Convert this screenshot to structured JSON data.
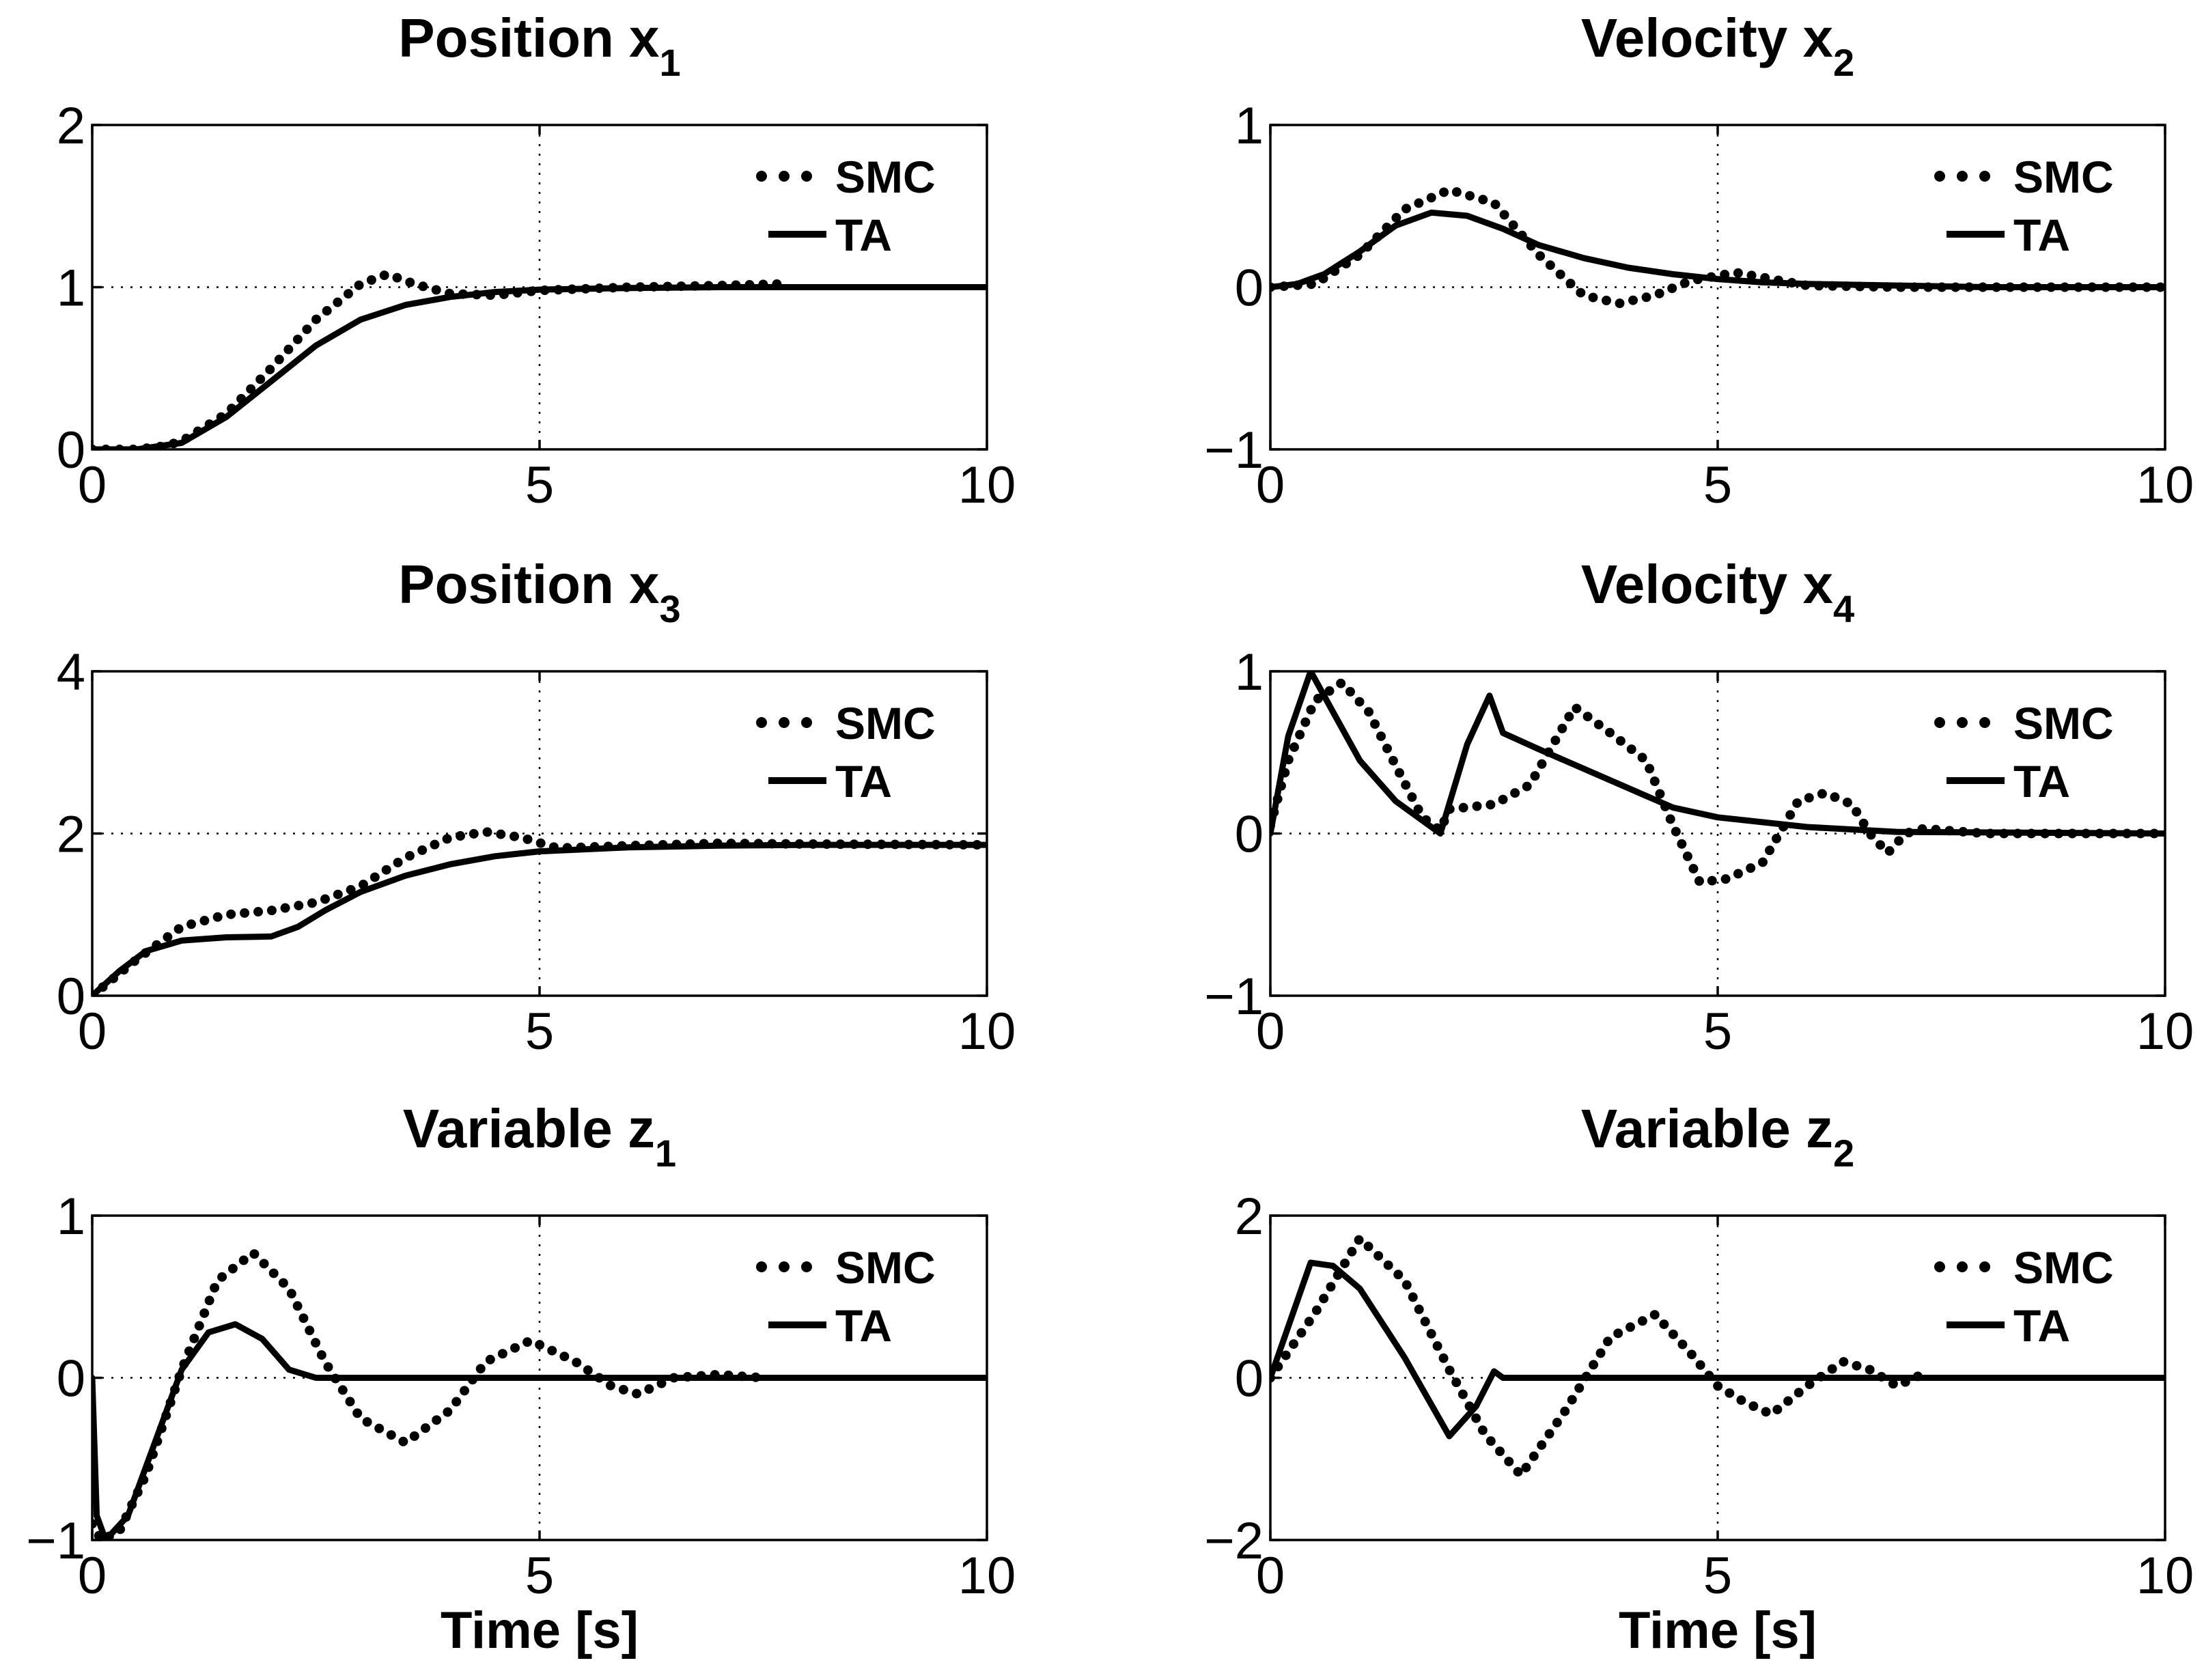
{
  "legend": {
    "smc": "SMC",
    "ta": "TA"
  },
  "colors": {
    "line": "#000000",
    "background": "#ffffff"
  },
  "chart_data": [
    {
      "type": "line",
      "title": "Position x",
      "subscript": "1",
      "xlabel": "",
      "xlim": [
        0,
        10
      ],
      "ylim": [
        0,
        2
      ],
      "xticks": [
        "0",
        "5",
        "10"
      ],
      "yticks": [
        "0",
        "1",
        "2"
      ],
      "grid_x": [
        5
      ],
      "grid_y": [
        1
      ],
      "legend_position": "top-right",
      "series": [
        {
          "name": "SMC",
          "style": "dotted",
          "x": [
            0,
            0.5,
            0.8,
            1,
            1.5,
            2,
            2.5,
            3,
            3.3,
            3.6,
            4,
            4.5,
            5,
            6,
            7,
            7.7
          ],
          "y": [
            0,
            0,
            0.02,
            0.05,
            0.22,
            0.5,
            0.8,
            1.02,
            1.08,
            1.02,
            0.96,
            0.95,
            0.98,
            1.0,
            1.01,
            1.02
          ]
        },
        {
          "name": "TA",
          "style": "solid",
          "x": [
            0,
            0.5,
            1,
            1.5,
            2,
            2.5,
            3,
            3.5,
            4,
            4.5,
            5,
            6,
            7,
            8,
            10
          ],
          "y": [
            0,
            0,
            0.04,
            0.2,
            0.42,
            0.64,
            0.8,
            0.89,
            0.94,
            0.97,
            0.985,
            0.995,
            1,
            1,
            1
          ]
        }
      ]
    },
    {
      "type": "line",
      "title": "Velocity x",
      "subscript": "2",
      "xlabel": "",
      "xlim": [
        0,
        10
      ],
      "ylim": [
        -1,
        1
      ],
      "xticks": [
        "0",
        "5",
        "10"
      ],
      "yticks": [
        "−1",
        "0",
        "1"
      ],
      "grid_x": [
        5
      ],
      "grid_y": [
        0
      ],
      "legend_position": "top-right",
      "series": [
        {
          "name": "SMC",
          "style": "dotted",
          "x": [
            0,
            0.5,
            1,
            1.5,
            2,
            2.5,
            3,
            3.5,
            3.9,
            4.3,
            4.7,
            5.2,
            5.6,
            6,
            7,
            8,
            10
          ],
          "y": [
            0,
            0.02,
            0.2,
            0.48,
            0.6,
            0.52,
            0.2,
            -0.05,
            -0.1,
            -0.05,
            0.04,
            0.09,
            0.05,
            0.01,
            0,
            0,
            0
          ]
        },
        {
          "name": "TA",
          "style": "solid",
          "x": [
            0,
            0.3,
            0.6,
            1,
            1.4,
            1.8,
            2.2,
            2.6,
            3,
            3.5,
            4,
            4.5,
            5,
            5.5,
            6,
            7,
            8,
            10
          ],
          "y": [
            0,
            0.02,
            0.08,
            0.22,
            0.38,
            0.46,
            0.44,
            0.36,
            0.26,
            0.18,
            0.12,
            0.08,
            0.05,
            0.03,
            0.02,
            0.01,
            0,
            0
          ]
        }
      ]
    },
    {
      "type": "line",
      "title": "Position x",
      "subscript": "3",
      "xlabel": "",
      "xlim": [
        0,
        10
      ],
      "ylim": [
        0,
        4
      ],
      "xticks": [
        "0",
        "5",
        "10"
      ],
      "yticks": [
        "0",
        "2",
        "4"
      ],
      "grid_x": [
        5
      ],
      "grid_y": [
        2
      ],
      "legend_position": "top-right",
      "series": [
        {
          "name": "SMC",
          "style": "dotted",
          "x": [
            0,
            0.5,
            1,
            1.5,
            2,
            2.5,
            3,
            3.5,
            4,
            4.4,
            4.8,
            5.2,
            6,
            7,
            8,
            10
          ],
          "y": [
            0,
            0.45,
            0.85,
            1.0,
            1.05,
            1.15,
            1.35,
            1.7,
            1.95,
            2.02,
            1.95,
            1.82,
            1.85,
            1.88,
            1.87,
            1.86
          ]
        },
        {
          "name": "TA",
          "style": "solid",
          "x": [
            0,
            0.3,
            0.6,
            1,
            1.5,
            2,
            2.3,
            2.6,
            3,
            3.5,
            4,
            4.5,
            5,
            6,
            7,
            8,
            10
          ],
          "y": [
            0,
            0.3,
            0.55,
            0.68,
            0.72,
            0.73,
            0.85,
            1.05,
            1.28,
            1.48,
            1.62,
            1.72,
            1.78,
            1.83,
            1.85,
            1.86,
            1.86
          ]
        }
      ]
    },
    {
      "type": "line",
      "title": "Velocity x",
      "subscript": "4",
      "xlabel": "",
      "xlim": [
        0,
        10
      ],
      "ylim": [
        -1,
        1
      ],
      "xticks": [
        "0",
        "5",
        "10"
      ],
      "yticks": [
        "−1",
        "0",
        "1"
      ],
      "grid_x": [
        5
      ],
      "grid_y": [
        0
      ],
      "legend_position": "top-right",
      "series": [
        {
          "name": "SMC",
          "style": "dotted",
          "x": [
            0,
            0.2,
            0.5,
            0.8,
            1.1,
            1.4,
            1.7,
            1.9,
            2,
            2.5,
            2.9,
            3.4,
            3.8,
            4.2,
            4.5,
            4.8,
            5.1,
            5.5,
            5.9,
            6.2,
            6.5,
            6.7,
            6.9,
            7.1,
            7.3,
            8,
            10
          ],
          "y": [
            0.05,
            0.45,
            0.82,
            0.93,
            0.75,
            0.42,
            0.1,
            0.02,
            0.15,
            0.18,
            0.3,
            0.78,
            0.62,
            0.45,
            0.05,
            -0.3,
            -0.28,
            -0.18,
            0.2,
            0.25,
            0.18,
            0.0,
            -0.12,
            0.0,
            0.03,
            0,
            0
          ]
        },
        {
          "name": "TA",
          "style": "solid",
          "x": [
            0,
            0.2,
            0.45,
            0.7,
            1,
            1.4,
            1.9,
            2.2,
            2.45,
            2.6,
            3,
            3.5,
            4,
            4.5,
            5,
            6,
            7,
            10
          ],
          "y": [
            0,
            0.6,
            1.0,
            0.75,
            0.45,
            0.2,
            0.0,
            0.55,
            0.85,
            0.62,
            0.52,
            0.4,
            0.28,
            0.16,
            0.1,
            0.04,
            0.01,
            0
          ]
        }
      ]
    },
    {
      "type": "line",
      "title": "Variable z",
      "subscript": "1",
      "xlabel": "Time [s]",
      "xlim": [
        0,
        10
      ],
      "ylim": [
        -1,
        1
      ],
      "xticks": [
        "0",
        "5",
        "10"
      ],
      "yticks": [
        "−1",
        "0",
        "1"
      ],
      "grid_x": [
        5
      ],
      "grid_y": [
        0
      ],
      "legend_position": "top-right",
      "series": [
        {
          "name": "SMC",
          "style": "dotted",
          "x": [
            0,
            0.1,
            0.3,
            0.6,
            1,
            1.4,
            1.8,
            2.2,
            2.6,
            3,
            3.5,
            4,
            4.4,
            4.9,
            5.4,
            5.8,
            6.1,
            6.5,
            7,
            7.5
          ],
          "y": [
            -0.9,
            -1.0,
            -0.95,
            -0.6,
            0.05,
            0.6,
            0.77,
            0.55,
            0.1,
            -0.25,
            -0.4,
            -0.2,
            0.1,
            0.23,
            0.1,
            -0.05,
            -0.1,
            0.0,
            0.02,
            0
          ]
        },
        {
          "name": "TA",
          "style": "solid",
          "x": [
            0,
            0.05,
            0.15,
            0.4,
            0.7,
            1,
            1.3,
            1.6,
            1.9,
            2.2,
            2.5,
            3,
            10
          ],
          "y": [
            0,
            -0.85,
            -1.0,
            -0.85,
            -0.4,
            0.05,
            0.28,
            0.33,
            0.24,
            0.05,
            0,
            0,
            0
          ]
        }
      ]
    },
    {
      "type": "line",
      "title": "Variable z",
      "subscript": "2",
      "xlabel": "Time [s]",
      "xlim": [
        0,
        10
      ],
      "ylim": [
        -2,
        2
      ],
      "xticks": [
        "0",
        "5",
        "10"
      ],
      "yticks": [
        "−2",
        "0",
        "2"
      ],
      "grid_x": [
        5
      ],
      "grid_y": [
        0
      ],
      "legend_position": "top-right",
      "series": [
        {
          "name": "SMC",
          "style": "dotted",
          "x": [
            0,
            0.5,
            1,
            1.5,
            2,
            2.4,
            2.8,
            3.3,
            3.8,
            4.3,
            4.7,
            5,
            5.3,
            5.6,
            6,
            6.4,
            6.7,
            7,
            7.3
          ],
          "y": [
            0,
            0.8,
            1.72,
            1.2,
            0.1,
            -0.7,
            -1.2,
            -0.4,
            0.5,
            0.78,
            0.3,
            -0.1,
            -0.3,
            -0.45,
            -0.1,
            0.2,
            0.1,
            -0.1,
            0.05
          ]
        },
        {
          "name": "TA",
          "style": "solid",
          "x": [
            0,
            0.45,
            0.7,
            1,
            1.5,
            2,
            2.3,
            2.5,
            2.6,
            10
          ],
          "y": [
            0,
            1.42,
            1.38,
            1.1,
            0.25,
            -0.72,
            -0.35,
            0.08,
            0,
            0
          ]
        }
      ]
    }
  ]
}
